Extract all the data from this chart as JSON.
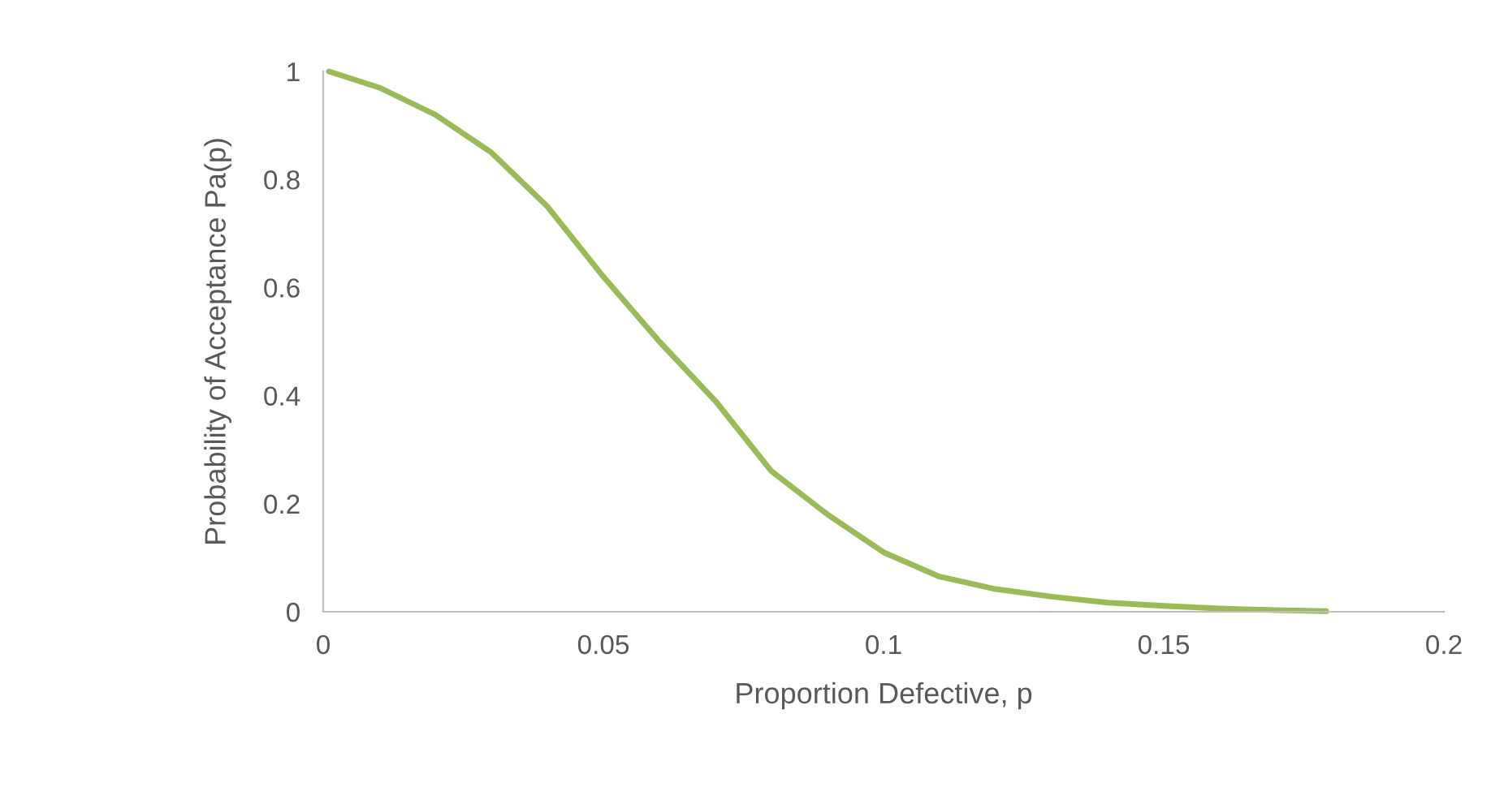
{
  "chart_data": {
    "type": "line",
    "xlabel": "Proportion Defective, p",
    "ylabel": "Probability of Acceptance Pa(p)",
    "x": [
      0.001,
      0.01,
      0.02,
      0.03,
      0.04,
      0.05,
      0.06,
      0.07,
      0.08,
      0.09,
      0.1,
      0.11,
      0.12,
      0.13,
      0.14,
      0.15,
      0.16,
      0.17,
      0.179
    ],
    "series": [
      {
        "color": "#9bbb59",
        "values": [
          1,
          0.97,
          0.92,
          0.85,
          0.75,
          0.62,
          0.5,
          0.39,
          0.26,
          0.18,
          0.11,
          0.065,
          0.042,
          0.028,
          0.017,
          0.011,
          0.006,
          0.003,
          0.001
        ]
      }
    ],
    "xlim": [
      0,
      0.2
    ],
    "ylim": [
      0,
      1
    ],
    "xticks": [
      0,
      0.05,
      0.1,
      0.15,
      0.2
    ],
    "yticks": [
      0,
      0.2,
      0.4,
      0.6,
      0.8,
      1
    ],
    "grid": false,
    "legend": false,
    "marker": "none",
    "line_style": "solid"
  }
}
